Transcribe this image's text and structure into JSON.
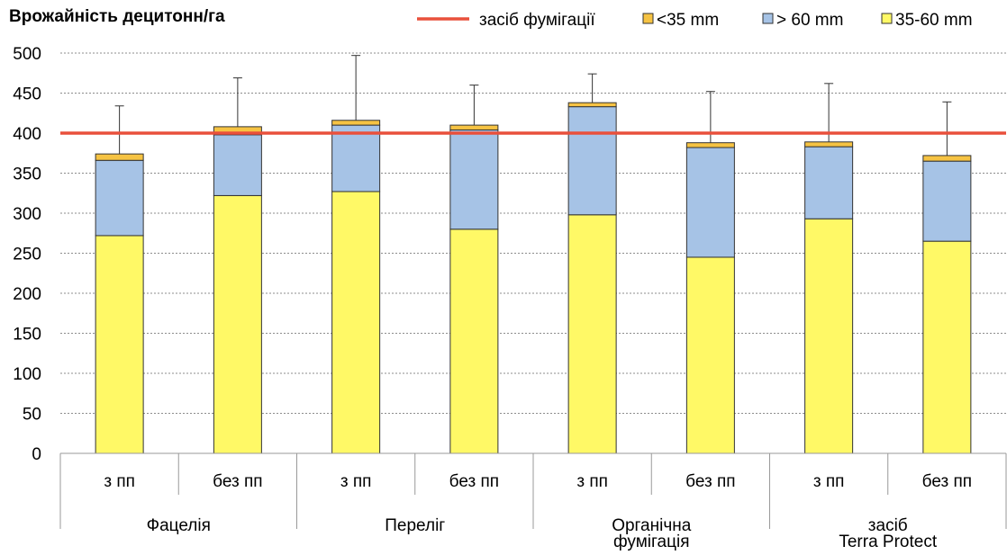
{
  "chart_data": {
    "type": "bar",
    "stacked": true,
    "title": "Врожайність децитонн/га",
    "ylim": [
      0,
      500
    ],
    "yticks": [
      0,
      50,
      100,
      150,
      200,
      250,
      300,
      350,
      400,
      450,
      500
    ],
    "grid": true,
    "legend_position": "top",
    "categories": [
      "з пп",
      "без пп",
      "з пп",
      "без пп",
      "з пп",
      "без пп",
      "з пп",
      "без пп"
    ],
    "groups": [
      {
        "lines": [
          "Фацелія"
        ]
      },
      {
        "lines": [
          "Переліг"
        ]
      },
      {
        "lines": [
          "Органічна",
          "фумігація"
        ]
      },
      {
        "lines": [
          "засіб",
          "Terra Protect"
        ]
      }
    ],
    "series": [
      {
        "name": "35-60 mm",
        "color": "#FFF966",
        "values": [
          272,
          322,
          327,
          280,
          298,
          245,
          293,
          265
        ]
      },
      {
        "name": "> 60 mm",
        "color": "#A6C3E6",
        "values": [
          94,
          76,
          83,
          124,
          135,
          137,
          90,
          100
        ]
      },
      {
        "name": "<35 mm",
        "color": "#F6C343",
        "values": [
          8,
          10,
          6,
          6,
          5,
          6,
          6,
          7
        ]
      }
    ],
    "error_tops": [
      434,
      469,
      497,
      460,
      474,
      452,
      462,
      439
    ],
    "reference_line": {
      "name": "засіб фумігації",
      "value": 400,
      "color": "#E9503C"
    },
    "legend": [
      {
        "kind": "line",
        "label": "засіб фумігації",
        "color": "#E9503C"
      },
      {
        "kind": "box",
        "label": "<35 mm",
        "color": "#F6C343"
      },
      {
        "kind": "box",
        "label": "> 60 mm",
        "color": "#A6C3E6"
      },
      {
        "kind": "box",
        "label": "35-60 mm",
        "color": "#FFF966"
      }
    ]
  }
}
